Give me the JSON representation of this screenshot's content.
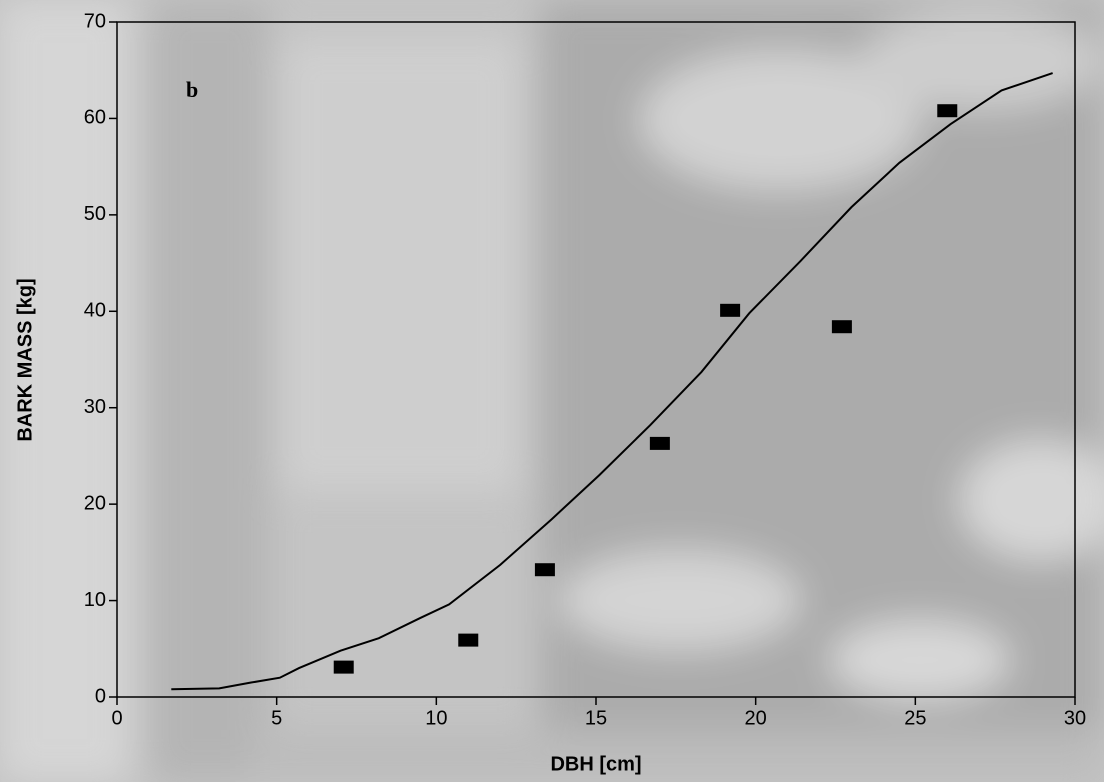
{
  "chart_data": {
    "type": "scatter",
    "annotation": "b",
    "x_label": "DBH [cm]",
    "y_label": "BARK MASS [kg]",
    "xlim": [
      0,
      30
    ],
    "xticks": [
      0,
      5,
      10,
      15,
      20,
      25,
      30
    ],
    "ylim": [
      0,
      70
    ],
    "yticks": [
      0,
      10,
      20,
      30,
      40,
      50,
      60,
      70
    ],
    "points": {
      "color": "#000000",
      "x": [
        7.1,
        11.0,
        13.4,
        17.0,
        19.2,
        22.7,
        26.0
      ],
      "values": [
        3.1,
        5.9,
        13.2,
        26.3,
        40.1,
        38.4,
        60.8
      ]
    },
    "curve": {
      "color": "#000000",
      "x": [
        1.7,
        3.2,
        4.2,
        5.1,
        5.7,
        7.0,
        8.2,
        9.5,
        10.4,
        12.0,
        13.6,
        15.1,
        16.7,
        18.3,
        19.8,
        21.4,
        23.0,
        24.5,
        26.1,
        27.7,
        29.3
      ],
      "values": [
        0.8,
        0.9,
        1.5,
        2.0,
        3.0,
        4.8,
        6.1,
        8.2,
        9.6,
        13.7,
        18.4,
        23.0,
        28.2,
        33.7,
        39.8,
        45.2,
        50.8,
        55.4,
        59.4,
        62.9,
        64.7
      ]
    }
  }
}
